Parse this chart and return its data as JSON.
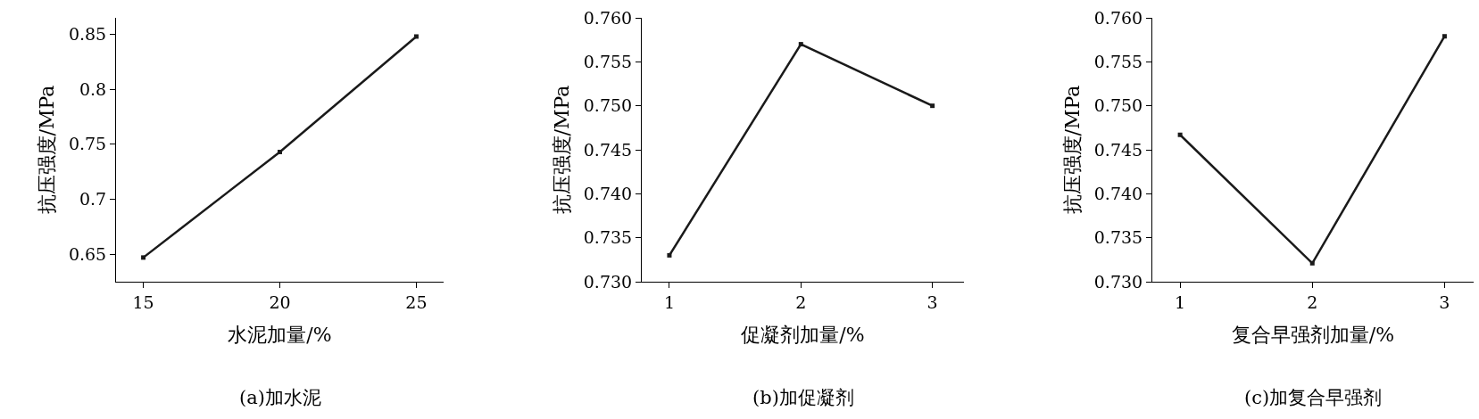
{
  "chart_data": [
    {
      "type": "line",
      "title": "(a)加水泥",
      "xlabel": "水泥加量/%",
      "ylabel": "抗压强度/MPa",
      "x": [
        15,
        20,
        25
      ],
      "values": [
        0.647,
        0.743,
        0.848
      ],
      "color": "#1a1a1a",
      "marker": "square",
      "xlim": [
        14,
        26
      ],
      "xticks": [
        15,
        20,
        25
      ],
      "ylim": [
        0.625,
        0.865
      ],
      "yticks": [
        0.65,
        0.7,
        0.75,
        0.8,
        0.85
      ],
      "grid": false
    },
    {
      "type": "line",
      "title": "(b)加促凝剂",
      "xlabel": "促凝剂加量/%",
      "ylabel": "抗压强度/MPa",
      "x": [
        1,
        2,
        3
      ],
      "values": [
        0.733,
        0.757,
        0.75
      ],
      "color": "#1a1a1a",
      "marker": "square",
      "xlim": [
        0.79,
        3.24
      ],
      "xticks": [
        1,
        2,
        3
      ],
      "ylim": [
        0.73,
        0.76
      ],
      "yticks": [
        {
          "value": 0.73,
          "label": "0.730"
        },
        0.735,
        {
          "value": 0.74,
          "label": "0.740"
        },
        0.745,
        {
          "value": 0.75,
          "label": "0.750"
        },
        0.755,
        {
          "value": 0.76,
          "label": "0.760"
        }
      ],
      "grid": false
    },
    {
      "type": "line",
      "title": "(c)加复合早强剂",
      "xlabel": "复合早强剂加量/%",
      "ylabel": "抗压强度/MPa",
      "x": [
        1,
        2,
        3
      ],
      "values": [
        0.7467,
        0.7321,
        0.7579
      ],
      "color": "#1a1a1a",
      "marker": "square",
      "xlim": [
        0.79,
        3.22
      ],
      "xticks": [
        1,
        2,
        3
      ],
      "ylim": [
        0.73,
        0.76
      ],
      "yticks": [
        {
          "value": 0.73,
          "label": "0.730"
        },
        0.735,
        {
          "value": 0.74,
          "label": "0.740"
        },
        0.745,
        {
          "value": 0.75,
          "label": "0.750"
        },
        0.755,
        {
          "value": 0.76,
          "label": "0.760"
        }
      ],
      "grid": false
    }
  ]
}
